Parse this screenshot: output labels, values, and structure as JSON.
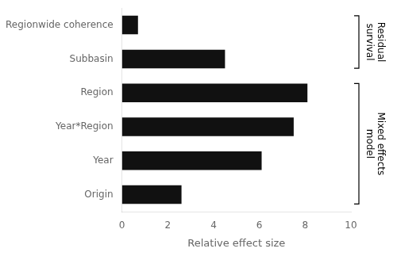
{
  "chart_data": {
    "type": "bar",
    "orientation": "horizontal",
    "categories": [
      "Origin",
      "Year",
      "Year*Region",
      "Region",
      "Subbasin",
      "Regionwide coherence"
    ],
    "values": [
      2.6,
      6.1,
      7.5,
      8.1,
      4.5,
      0.7
    ],
    "color": "#111111",
    "xlabel": "Relative effect size",
    "xlim": [
      0,
      10
    ],
    "xticks": [
      0,
      2,
      4,
      6,
      8,
      10
    ],
    "grid": false,
    "annotations": [
      {
        "text": "Residual\nsurvival",
        "from": "Subbasin",
        "to": "Regionwide coherence"
      },
      {
        "text": "Mixed effects\nmodel",
        "from": "Origin",
        "to": "Region"
      }
    ]
  }
}
